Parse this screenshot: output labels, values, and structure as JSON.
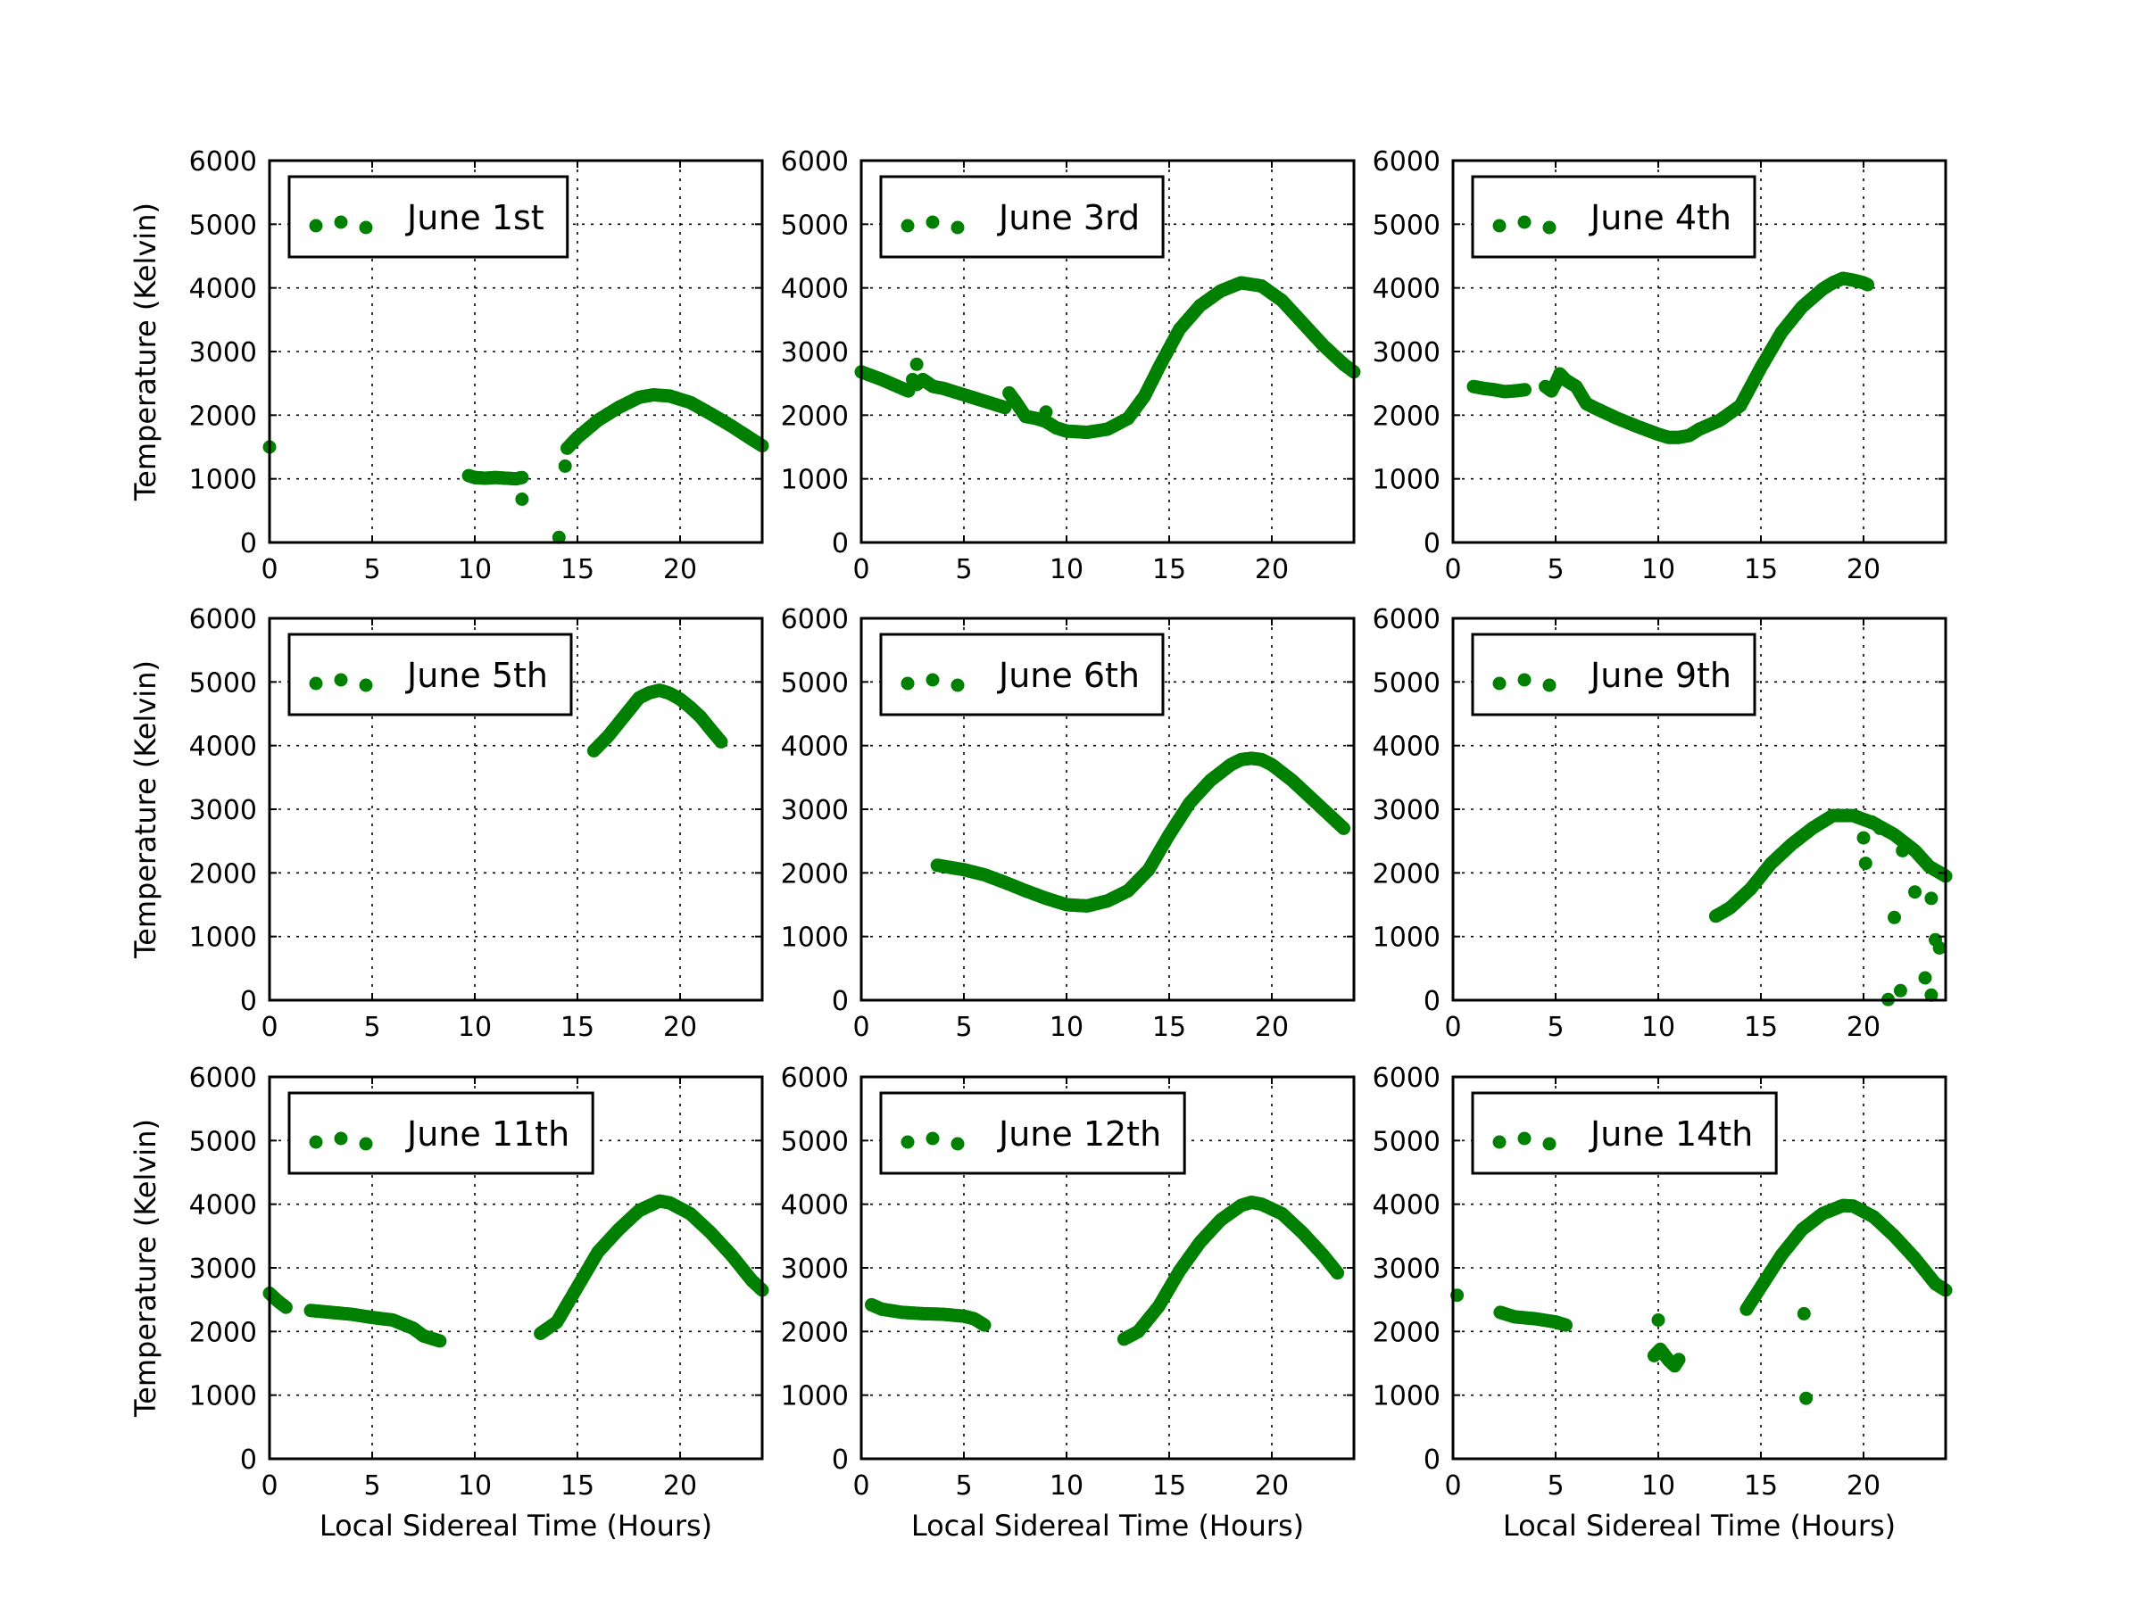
{
  "chart_data": [
    {
      "type": "scatter",
      "legend": "June 1st",
      "color": "#008000",
      "xlim": [
        0,
        24
      ],
      "ylim": [
        0,
        6000
      ],
      "xticks": [
        "0",
        "5",
        "10",
        "15",
        "20"
      ],
      "yticks": [
        "0",
        "1000",
        "2000",
        "3000",
        "4000",
        "5000",
        "6000"
      ],
      "xlabel": "",
      "ylabel": "Temperature (Kelvin)",
      "grid": true,
      "legend_loc": "upper left",
      "segments": [
        [
          [
            0,
            1500
          ]
        ],
        [
          [
            9.7,
            1050
          ],
          [
            10.0,
            1020
          ],
          [
            10.5,
            1010
          ],
          [
            11.0,
            1020
          ],
          [
            11.5,
            1010
          ],
          [
            12.0,
            1000
          ],
          [
            12.3,
            1020
          ]
        ],
        [
          [
            12.3,
            680
          ]
        ],
        [
          [
            14.1,
            80
          ]
        ],
        [
          [
            14.4,
            1200
          ]
        ],
        [
          [
            14.5,
            1480
          ],
          [
            15,
            1650
          ],
          [
            16,
            1920
          ],
          [
            17,
            2120
          ],
          [
            18,
            2280
          ],
          [
            18.7,
            2320
          ],
          [
            19.5,
            2300
          ],
          [
            20.5,
            2200
          ],
          [
            21.5,
            2020
          ],
          [
            22.5,
            1830
          ],
          [
            23.5,
            1620
          ],
          [
            24,
            1520
          ]
        ]
      ]
    },
    {
      "type": "scatter",
      "legend": "June 3rd",
      "color": "#008000",
      "xlim": [
        0,
        24
      ],
      "ylim": [
        0,
        6000
      ],
      "xticks": [
        "0",
        "5",
        "10",
        "15",
        "20"
      ],
      "yticks": [
        "0",
        "1000",
        "2000",
        "3000",
        "4000",
        "5000",
        "6000"
      ],
      "xlabel": "",
      "ylabel": "",
      "grid": true,
      "legend_loc": "upper left",
      "segments": [
        [
          [
            0,
            2680
          ],
          [
            1,
            2560
          ],
          [
            2,
            2420
          ],
          [
            2.3,
            2380
          ]
        ],
        [
          [
            2.5,
            2560
          ],
          [
            2.7,
            2480
          ],
          [
            3,
            2560
          ],
          [
            3.5,
            2450
          ],
          [
            4,
            2420
          ],
          [
            5,
            2320
          ],
          [
            6,
            2220
          ],
          [
            7,
            2120
          ]
        ],
        [
          [
            7.2,
            2350
          ],
          [
            7.5,
            2220
          ],
          [
            8,
            1980
          ],
          [
            8.5,
            1950
          ],
          [
            9,
            1900
          ],
          [
            9.5,
            1800
          ],
          [
            10,
            1750
          ],
          [
            11,
            1730
          ],
          [
            12,
            1780
          ],
          [
            13,
            1950
          ],
          [
            13.8,
            2300
          ],
          [
            14.5,
            2750
          ],
          [
            15.5,
            3350
          ],
          [
            16.5,
            3720
          ],
          [
            17.5,
            3950
          ],
          [
            18.5,
            4080
          ],
          [
            19.5,
            4030
          ],
          [
            20.5,
            3800
          ],
          [
            21.5,
            3450
          ],
          [
            22.5,
            3100
          ],
          [
            23.5,
            2800
          ],
          [
            24,
            2680
          ]
        ],
        [
          [
            2.7,
            2800
          ]
        ],
        [
          [
            9.0,
            2050
          ]
        ]
      ]
    },
    {
      "type": "scatter",
      "legend": "June 4th",
      "color": "#008000",
      "xlim": [
        0,
        24
      ],
      "ylim": [
        0,
        6000
      ],
      "xticks": [
        "0",
        "5",
        "10",
        "15",
        "20"
      ],
      "yticks": [
        "0",
        "1000",
        "2000",
        "3000",
        "4000",
        "5000",
        "6000"
      ],
      "xlabel": "",
      "ylabel": "",
      "grid": true,
      "legend_loc": "upper left",
      "segments": [
        [
          [
            1,
            2450
          ],
          [
            1.5,
            2420
          ],
          [
            2,
            2400
          ],
          [
            2.5,
            2370
          ],
          [
            3,
            2380
          ],
          [
            3.5,
            2400
          ]
        ],
        [
          [
            4.5,
            2450
          ],
          [
            4.8,
            2380
          ],
          [
            5,
            2500
          ],
          [
            5.2,
            2650
          ],
          [
            5.5,
            2550
          ],
          [
            6,
            2450
          ],
          [
            6.5,
            2180
          ],
          [
            7,
            2100
          ],
          [
            8,
            1950
          ],
          [
            9,
            1820
          ],
          [
            10,
            1700
          ],
          [
            10.5,
            1650
          ],
          [
            11,
            1650
          ],
          [
            11.5,
            1680
          ],
          [
            12,
            1780
          ],
          [
            13,
            1920
          ],
          [
            14,
            2150
          ],
          [
            15,
            2750
          ],
          [
            16,
            3300
          ],
          [
            17,
            3700
          ],
          [
            18,
            3980
          ],
          [
            18.5,
            4080
          ],
          [
            19,
            4150
          ],
          [
            19.5,
            4120
          ],
          [
            20,
            4080
          ],
          [
            20.2,
            4050
          ]
        ]
      ]
    },
    {
      "type": "scatter",
      "legend": "June 5th",
      "color": "#008000",
      "xlim": [
        0,
        24
      ],
      "ylim": [
        0,
        6000
      ],
      "xticks": [
        "0",
        "5",
        "10",
        "15",
        "20"
      ],
      "yticks": [
        "0",
        "1000",
        "2000",
        "3000",
        "4000",
        "5000",
        "6000"
      ],
      "xlabel": "",
      "ylabel": "Temperature (Kelvin)",
      "grid": true,
      "legend_loc": "upper left",
      "segments": [
        [
          [
            15.8,
            3920
          ],
          [
            16.5,
            4150
          ],
          [
            17,
            4350
          ],
          [
            17.5,
            4550
          ],
          [
            18,
            4750
          ],
          [
            18.5,
            4830
          ],
          [
            19,
            4870
          ],
          [
            19.5,
            4820
          ],
          [
            20,
            4730
          ],
          [
            20.5,
            4600
          ],
          [
            21,
            4450
          ],
          [
            21.5,
            4250
          ],
          [
            22,
            4060
          ]
        ]
      ]
    },
    {
      "type": "scatter",
      "legend": "June 6th",
      "color": "#008000",
      "xlim": [
        0,
        24
      ],
      "ylim": [
        0,
        6000
      ],
      "xticks": [
        "0",
        "5",
        "10",
        "15",
        "20"
      ],
      "yticks": [
        "0",
        "1000",
        "2000",
        "3000",
        "4000",
        "5000",
        "6000"
      ],
      "xlabel": "",
      "ylabel": "",
      "grid": true,
      "legend_loc": "upper left",
      "segments": [
        [
          [
            3.7,
            2120
          ],
          [
            5,
            2050
          ],
          [
            6,
            1970
          ],
          [
            7,
            1850
          ],
          [
            8,
            1720
          ],
          [
            9,
            1600
          ],
          [
            10,
            1500
          ],
          [
            11,
            1480
          ],
          [
            12,
            1560
          ],
          [
            13,
            1720
          ],
          [
            14,
            2050
          ],
          [
            15,
            2600
          ],
          [
            16,
            3100
          ],
          [
            17,
            3450
          ],
          [
            18,
            3700
          ],
          [
            18.5,
            3780
          ],
          [
            19,
            3800
          ],
          [
            19.5,
            3780
          ],
          [
            20,
            3700
          ],
          [
            21,
            3450
          ],
          [
            22,
            3150
          ],
          [
            23,
            2850
          ],
          [
            23.5,
            2700
          ]
        ]
      ]
    },
    {
      "type": "scatter",
      "legend": "June 9th",
      "color": "#008000",
      "xlim": [
        0,
        24
      ],
      "ylim": [
        0,
        6000
      ],
      "xticks": [
        "0",
        "5",
        "10",
        "15",
        "20"
      ],
      "yticks": [
        "0",
        "1000",
        "2000",
        "3000",
        "4000",
        "5000",
        "6000"
      ],
      "xlabel": "",
      "ylabel": "",
      "grid": true,
      "legend_loc": "upper left",
      "segments": [
        [
          [
            12.8,
            1320
          ],
          [
            13.5,
            1450
          ],
          [
            14.5,
            1750
          ],
          [
            15.5,
            2150
          ],
          [
            16.5,
            2450
          ],
          [
            17.5,
            2700
          ],
          [
            18.5,
            2900
          ],
          [
            19.5,
            2900
          ],
          [
            20.5,
            2780
          ],
          [
            21.5,
            2600
          ],
          [
            22.5,
            2350
          ],
          [
            23.2,
            2100
          ],
          [
            24,
            1950
          ]
        ],
        [
          [
            20,
            2550
          ]
        ],
        [
          [
            20.1,
            2150
          ]
        ],
        [
          [
            20.4,
            2800
          ]
        ],
        [
          [
            20.8,
            2700
          ]
        ],
        [
          [
            21.5,
            1300
          ]
        ],
        [
          [
            21.8,
            150
          ]
        ],
        [
          [
            21.9,
            2350
          ]
        ],
        [
          [
            22.5,
            1700
          ]
        ],
        [
          [
            23,
            350
          ]
        ],
        [
          [
            23.3,
            1600
          ]
        ],
        [
          [
            23.5,
            950
          ]
        ],
        [
          [
            23.7,
            820
          ]
        ],
        [
          [
            21.2,
            10
          ]
        ],
        [
          [
            23.3,
            80
          ]
        ]
      ]
    },
    {
      "type": "scatter",
      "legend": "June 11th",
      "color": "#008000",
      "xlim": [
        0,
        24
      ],
      "ylim": [
        0,
        6000
      ],
      "xticks": [
        "0",
        "5",
        "10",
        "15",
        "20"
      ],
      "yticks": [
        "0",
        "1000",
        "2000",
        "3000",
        "4000",
        "5000",
        "6000"
      ],
      "xlabel": "Local Sidereal Time (Hours)",
      "ylabel": "Temperature (Kelvin)",
      "grid": true,
      "legend_loc": "upper left",
      "segments": [
        [
          [
            0,
            2600
          ],
          [
            0.4,
            2480
          ],
          [
            0.8,
            2380
          ]
        ],
        [
          [
            2,
            2330
          ],
          [
            3,
            2300
          ],
          [
            4,
            2270
          ],
          [
            5,
            2220
          ],
          [
            6,
            2180
          ],
          [
            7,
            2050
          ],
          [
            7.5,
            1930
          ],
          [
            8,
            1880
          ],
          [
            8.3,
            1850
          ]
        ],
        [
          [
            13.2,
            1970
          ],
          [
            14,
            2150
          ],
          [
            15,
            2700
          ],
          [
            16,
            3250
          ],
          [
            17,
            3600
          ],
          [
            18,
            3900
          ],
          [
            19,
            4050
          ],
          [
            19.5,
            4020
          ],
          [
            20.5,
            3850
          ],
          [
            21.5,
            3550
          ],
          [
            22.5,
            3200
          ],
          [
            23.5,
            2800
          ],
          [
            24,
            2650
          ]
        ]
      ]
    },
    {
      "type": "scatter",
      "legend": "June 12th",
      "color": "#008000",
      "xlim": [
        0,
        24
      ],
      "ylim": [
        0,
        6000
      ],
      "xticks": [
        "0",
        "5",
        "10",
        "15",
        "20"
      ],
      "yticks": [
        "0",
        "1000",
        "2000",
        "3000",
        "4000",
        "5000",
        "6000"
      ],
      "xlabel": "Local Sidereal Time (Hours)",
      "ylabel": "",
      "grid": true,
      "legend_loc": "upper left",
      "segments": [
        [
          [
            0.5,
            2420
          ],
          [
            1,
            2350
          ],
          [
            2,
            2300
          ],
          [
            3,
            2280
          ],
          [
            4,
            2270
          ],
          [
            5,
            2240
          ],
          [
            5.5,
            2200
          ],
          [
            6,
            2100
          ]
        ],
        [
          [
            12.8,
            1880
          ],
          [
            13.5,
            2000
          ],
          [
            14.5,
            2400
          ],
          [
            15.5,
            2950
          ],
          [
            16.5,
            3400
          ],
          [
            17.5,
            3750
          ],
          [
            18.5,
            3980
          ],
          [
            19,
            4030
          ],
          [
            19.5,
            4000
          ],
          [
            20.5,
            3850
          ],
          [
            21.5,
            3550
          ],
          [
            22.5,
            3200
          ],
          [
            23.2,
            2920
          ]
        ]
      ]
    },
    {
      "type": "scatter",
      "legend": "June 14th",
      "color": "#008000",
      "xlim": [
        0,
        24
      ],
      "ylim": [
        0,
        6000
      ],
      "xticks": [
        "0",
        "5",
        "10",
        "15",
        "20"
      ],
      "yticks": [
        "0",
        "1000",
        "2000",
        "3000",
        "4000",
        "5000",
        "6000"
      ],
      "xlabel": "Local Sidereal Time (Hours)",
      "ylabel": "",
      "grid": true,
      "legend_loc": "upper left",
      "segments": [
        [
          [
            0.2,
            2570
          ]
        ],
        [
          [
            2.3,
            2300
          ],
          [
            3,
            2230
          ],
          [
            4,
            2200
          ],
          [
            5,
            2150
          ],
          [
            5.5,
            2100
          ]
        ],
        [
          [
            9.8,
            1620
          ],
          [
            10.1,
            1720
          ],
          [
            10.5,
            1550
          ],
          [
            10.8,
            1460
          ],
          [
            11,
            1560
          ]
        ],
        [
          [
            10,
            2180
          ]
        ],
        [
          [
            14.3,
            2350
          ],
          [
            15,
            2700
          ],
          [
            16,
            3200
          ],
          [
            17,
            3600
          ],
          [
            18,
            3850
          ],
          [
            19,
            3980
          ],
          [
            19.5,
            3970
          ],
          [
            20.5,
            3800
          ],
          [
            21.5,
            3500
          ],
          [
            22.5,
            3150
          ],
          [
            23.5,
            2750
          ],
          [
            24,
            2650
          ]
        ],
        [
          [
            17.1,
            2280
          ]
        ],
        [
          [
            17.2,
            950
          ]
        ]
      ]
    }
  ]
}
